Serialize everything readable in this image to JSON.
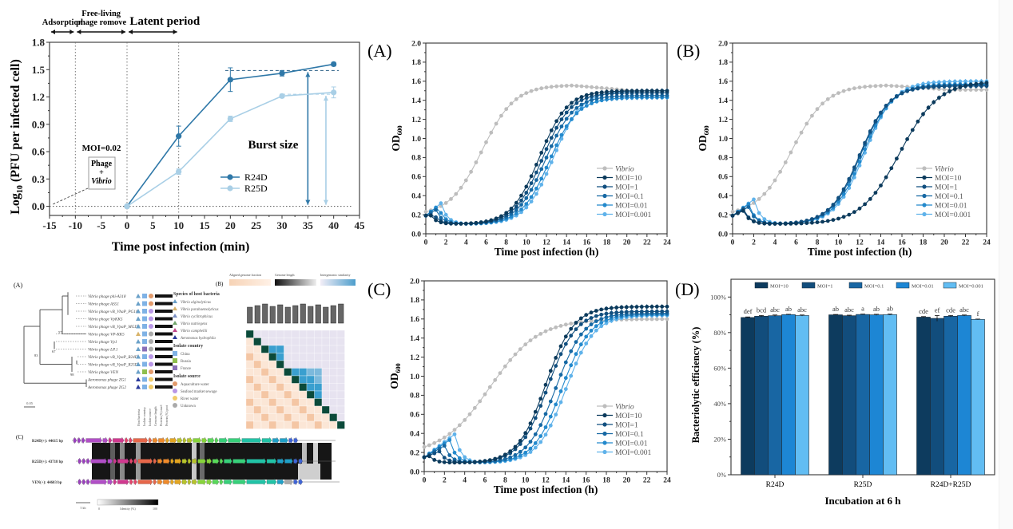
{
  "chart_data": [
    {
      "id": "one-step",
      "type": "line",
      "title": "",
      "xlabel": "Time post infection (min)",
      "ylabel": "Log10 (PFU per infected cell)",
      "ylabel_main": "Log",
      "ylabel_sub": "10",
      "ylabel_rest": " (PFU per infected cell)",
      "xlim": [
        -15,
        45
      ],
      "ylim": [
        -0.1,
        1.8
      ],
      "xticks": [
        -15,
        -10,
        -5,
        0,
        5,
        10,
        15,
        20,
        25,
        30,
        35,
        40,
        45
      ],
      "yticks": [
        0.0,
        0.3,
        0.6,
        0.9,
        1.2,
        1.5,
        1.8
      ],
      "ytick_labels": [
        "0.0",
        "0.3",
        "0.6",
        "0.9",
        "1.2",
        "1.5",
        "1.8"
      ],
      "legend_position": "center-right",
      "series": [
        {
          "name": "R24D",
          "color": "#2f78a8",
          "x": [
            0,
            10,
            20,
            30,
            40
          ],
          "y": [
            0.0,
            0.77,
            1.39,
            1.46,
            1.56
          ],
          "err": [
            0,
            0.11,
            0.13,
            0.03,
            0.02
          ]
        },
        {
          "name": "R25D",
          "color": "#a9cfe6",
          "x": [
            0,
            10,
            20,
            30,
            40
          ],
          "y": [
            0.0,
            0.38,
            0.96,
            1.21,
            1.25
          ],
          "err": [
            0,
            0.03,
            0.03,
            0.02,
            0.06
          ]
        }
      ],
      "annotations": {
        "phases": [
          {
            "label": "Adsorption",
            "from": -15,
            "to": -10
          },
          {
            "label": "Free-living phage romove",
            "line1": "Free-living",
            "line2": "phage romove",
            "from": -10,
            "to": 0
          },
          {
            "label": "Latent period",
            "from": 0,
            "to": 10
          }
        ],
        "moi": "MOI=0.02",
        "box_line1": "Phage",
        "box_line2": "+",
        "box_line3": "Vibrio",
        "burst_label": "Burst size",
        "plateau_r24d": 1.49,
        "plateau_r25d": 1.23,
        "arrow_x_r24d": 35,
        "arrow_x_r25d": 38.5,
        "vlines": [
          -10,
          0,
          10
        ]
      }
    },
    {
      "id": "growth-A",
      "panel_label": "(A)",
      "type": "line",
      "xlabel": "Time post infection (h)",
      "ylabel": "OD600",
      "ylabel_main": "OD",
      "ylabel_sub": "600",
      "xlim": [
        0,
        24
      ],
      "ylim": [
        0,
        2.0
      ],
      "xticks": [
        0,
        2,
        4,
        6,
        8,
        10,
        12,
        14,
        16,
        18,
        20,
        22,
        24
      ],
      "yticks": [
        0.0,
        0.2,
        0.4,
        0.6,
        0.8,
        1.0,
        1.2,
        1.4,
        1.6,
        1.8,
        2.0
      ],
      "ytick_labels": [
        "0.0",
        "0.2",
        "0.4",
        "0.6",
        "0.8",
        "1.0",
        "1.2",
        "1.4",
        "1.6",
        "1.8",
        "2.0"
      ],
      "legend_position": "bottom-right",
      "series": [
        {
          "name": "Vibrio",
          "color": "#bdbdbd",
          "start": 0.19,
          "peak": [
            14.5,
            1.56
          ],
          "end": 1.5,
          "model": "control"
        },
        {
          "name": "MOI=10",
          "color": "#0b3a5c",
          "start": 0.19,
          "bump": [
            0.5,
            0.19
          ],
          "min": 0.1,
          "mid": 11.3,
          "top": 1.5
        },
        {
          "name": "MOI=1",
          "color": "#114f7f",
          "start": 0.19,
          "bump": [
            0.8,
            0.2
          ],
          "min": 0.1,
          "mid": 11.6,
          "top": 1.48
        },
        {
          "name": "MOI=0.1",
          "color": "#1668a3",
          "start": 0.19,
          "bump": [
            1.0,
            0.25
          ],
          "min": 0.1,
          "mid": 11.9,
          "top": 1.45
        },
        {
          "name": "MOI=0.01",
          "color": "#2389cc",
          "start": 0.19,
          "bump": [
            1.2,
            0.29
          ],
          "min": 0.1,
          "mid": 12.3,
          "top": 1.43
        },
        {
          "name": "MOI=0.001",
          "color": "#5fb2ea",
          "start": 0.19,
          "bump": [
            1.5,
            0.32
          ],
          "min": 0.1,
          "mid": 12.7,
          "top": 1.5
        }
      ]
    },
    {
      "id": "growth-B",
      "panel_label": "(B)",
      "type": "line",
      "xlabel": "Time post infection (h)",
      "ylabel": "OD600",
      "ylabel_main": "OD",
      "ylabel_sub": "600",
      "xlim": [
        0,
        24
      ],
      "ylim": [
        0,
        2.0
      ],
      "xticks": [
        0,
        2,
        4,
        6,
        8,
        10,
        12,
        14,
        16,
        18,
        20,
        22,
        24
      ],
      "yticks": [
        0.0,
        0.2,
        0.4,
        0.6,
        0.8,
        1.0,
        1.2,
        1.4,
        1.6,
        1.8,
        2.0
      ],
      "ytick_labels": [
        "0.0",
        "0.2",
        "0.4",
        "0.6",
        "0.8",
        "1.0",
        "1.2",
        "1.4",
        "1.6",
        "1.8",
        "2.0"
      ],
      "legend_position": "bottom-right",
      "series": [
        {
          "name": "Vibrio",
          "color": "#bdbdbd",
          "start": 0.19,
          "peak": [
            14.5,
            1.56
          ],
          "end": 1.51,
          "model": "control"
        },
        {
          "name": "MOI=10",
          "color": "#0b3a5c",
          "start": 0.19,
          "bump": [
            1.0,
            0.24
          ],
          "min": 0.1,
          "mid": 15.8,
          "top": 1.6,
          "slow": true
        },
        {
          "name": "MOI=1",
          "color": "#114f7f",
          "start": 0.19,
          "bump": [
            1.0,
            0.26
          ],
          "min": 0.1,
          "mid": 12.0,
          "top": 1.55
        },
        {
          "name": "MOI=0.1",
          "color": "#1668a3",
          "start": 0.19,
          "bump": [
            1.5,
            0.28
          ],
          "min": 0.1,
          "mid": 12.1,
          "top": 1.56
        },
        {
          "name": "MOI=0.01",
          "color": "#2389cc",
          "start": 0.19,
          "bump": [
            1.5,
            0.31
          ],
          "min": 0.1,
          "mid": 12.3,
          "top": 1.57
        },
        {
          "name": "MOI=0.001",
          "color": "#5fb2ea",
          "start": 0.19,
          "bump": [
            2.0,
            0.36
          ],
          "min": 0.1,
          "mid": 12.5,
          "top": 1.6
        }
      ]
    },
    {
      "id": "growth-C",
      "panel_label": "(C)",
      "type": "line",
      "xlabel": "Time post infection (h)",
      "ylabel": "OD600",
      "ylabel_main": "OD",
      "ylabel_sub": "600",
      "xlim": [
        0,
        24
      ],
      "ylim": [
        0,
        2.0
      ],
      "xticks": [
        0,
        2,
        4,
        6,
        8,
        10,
        12,
        14,
        16,
        18,
        20,
        22,
        24
      ],
      "yticks": [
        0.0,
        0.2,
        0.4,
        0.6,
        0.8,
        1.0,
        1.2,
        1.4,
        1.6,
        1.8,
        2.0
      ],
      "ytick_labels": [
        "0.0",
        "0.2",
        "0.4",
        "0.6",
        "0.8",
        "1.0",
        "1.2",
        "1.4",
        "1.6",
        "1.8",
        "2.0"
      ],
      "legend_position": "bottom-right",
      "series": [
        {
          "name": "Vibrio",
          "color": "#bdbdbd",
          "start": 0.17,
          "peak": [
            20,
            1.6
          ],
          "end": 1.6,
          "model": "control-slow"
        },
        {
          "name": "MOI=10",
          "color": "#0b3a5c",
          "start": 0.15,
          "bump": [
            0.5,
            0.16
          ],
          "min": 0.09,
          "mid": 12.0,
          "top": 1.73
        },
        {
          "name": "MOI=1",
          "color": "#114f7f",
          "start": 0.15,
          "bump": [
            1.5,
            0.21
          ],
          "min": 0.09,
          "mid": 12.2,
          "top": 1.68
        },
        {
          "name": "MOI=0.1",
          "color": "#1668a3",
          "start": 0.15,
          "bump": [
            2.0,
            0.27
          ],
          "min": 0.09,
          "mid": 13.0,
          "top": 1.66
        },
        {
          "name": "MOI=0.01",
          "color": "#2389cc",
          "start": 0.15,
          "bump": [
            2.5,
            0.33
          ],
          "min": 0.09,
          "mid": 13.6,
          "top": 1.65
        },
        {
          "name": "MOI=0.001",
          "color": "#5fb2ea",
          "start": 0.15,
          "bump": [
            3.0,
            0.39
          ],
          "min": 0.09,
          "mid": 14.0,
          "top": 1.64
        }
      ]
    },
    {
      "id": "lysis-D",
      "panel_label": "(D)",
      "type": "bar",
      "xlabel": "Incubation at 6 h",
      "ylabel": "Bacteriolytic efficiency (%)",
      "ylim": [
        0,
        100
      ],
      "yticks": [
        0,
        20,
        40,
        60,
        80,
        100
      ],
      "ytick_labels": [
        "0%",
        "20%",
        "40%",
        "60%",
        "80%",
        "100%"
      ],
      "categories": [
        "R24D",
        "R25D",
        "R24D+R25D"
      ],
      "legend_position": "top",
      "series": [
        {
          "name": "MOI=10",
          "color": "#0d3b5e",
          "values": [
            88.5,
            90.0,
            88.7
          ],
          "err": [
            0.3,
            0.2,
            0.3
          ],
          "letters": [
            "def",
            "ab",
            "cde"
          ]
        },
        {
          "name": "MOI=1",
          "color": "#124d7c",
          "values": [
            89.2,
            89.5,
            88.0
          ],
          "err": [
            0.4,
            0.3,
            1.6
          ],
          "letters": [
            "bcd",
            "abc",
            "ef"
          ]
        },
        {
          "name": "MOI=0.1",
          "color": "#1866a3",
          "values": [
            89.5,
            90.2,
            89.2
          ],
          "err": [
            0.4,
            0.2,
            0.4
          ],
          "letters": [
            "abc",
            "a",
            "cde"
          ]
        },
        {
          "name": "MOI=0.01",
          "color": "#1d86d4",
          "values": [
            90.1,
            90.0,
            89.6
          ],
          "err": [
            0.2,
            0.3,
            0.3
          ],
          "letters": [
            "ab",
            "ab",
            "abc"
          ]
        },
        {
          "name": "MOI=0.001",
          "color": "#62bdf3",
          "values": [
            89.6,
            90.1,
            87.4
          ],
          "err": [
            0.3,
            0.3,
            0.2
          ],
          "letters": [
            "abc",
            "ab",
            "f"
          ]
        }
      ]
    }
  ],
  "genomics": {
    "tree": {
      "panel_label": "(A)",
      "scale_label": "0.05",
      "leaves": [
        "Vibrio phage phi-A318",
        "Vibrio phage AS51",
        "Vibrio phage vB_VhaP_PG11",
        "Vibrio phage VpKK5",
        "Vibrio phage vB_VpaP_MGD2",
        "Vibrio phage VP-KK5",
        "Vibrio phage Vp1",
        "Vibrio phage LP.1",
        "Vibrio phage vB_VpaP_R24D",
        "Vibrio phage vB_VpaP_R25D",
        "Vibrio phage VEN",
        "Aeromonas phage ZG1",
        "Aeromonas phage ZG2"
      ],
      "bootstrap": [
        "57",
        "67",
        "83",
        "98"
      ],
      "legend_sections": [
        {
          "title": "Species of host bacteria",
          "items": [
            "Vibrio alginolyticus",
            "Vibrio parahaemolyticus",
            "Vibrio cyclitrophicus",
            "Vibrio natriegens",
            "Vibrio campbellii",
            "Aeromonas hydrophila"
          ]
        },
        {
          "title": "Isolate country",
          "items": [
            "China",
            "Russia",
            "France"
          ]
        },
        {
          "title": "Isolate source",
          "items": [
            "Aquaculture water",
            "Seafood market sewage",
            "River water",
            "Unknown"
          ]
        }
      ],
      "column_labels": [
        "Host bacteria",
        "Isolate country",
        "Isolate source",
        "Genome length",
        "Protein (%) nucl",
        "Protein (%) prot"
      ]
    },
    "heatmap": {
      "panel_label": "(B)",
      "scales": [
        "Aligned genome fraction",
        "Genome length",
        "Intergenomic similarity"
      ]
    },
    "synteny": {
      "panel_label": "(C)",
      "tracks": [
        "R24D(+): 44615 bp",
        "R25D(+): 43718 bp",
        "VEN(+): 44603 bp"
      ],
      "scale_label": "5 kb",
      "identity_label": "Identity (%)",
      "identity_min": "0",
      "identity_max": "100"
    }
  }
}
